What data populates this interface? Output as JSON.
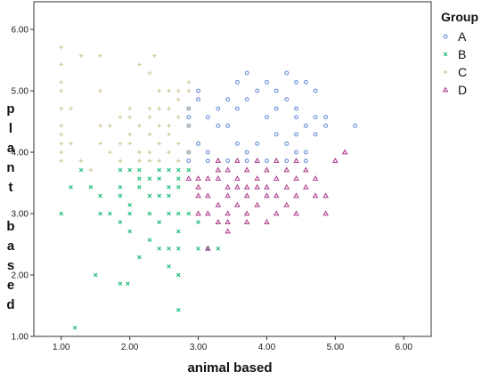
{
  "chart_data": {
    "type": "scatter",
    "xlabel": "animal based",
    "ylabel": "plant based",
    "xlim": [
      0.6,
      6.4
    ],
    "ylim": [
      1.0,
      6.45
    ],
    "xticks": [
      "1.00",
      "2.00",
      "3.00",
      "4.00",
      "5.00",
      "6.00"
    ],
    "yticks": [
      "1.00",
      "2.00",
      "3.00",
      "4.00",
      "5.00",
      "6.00"
    ],
    "grid": false,
    "legend": {
      "title": "Group",
      "position": "right"
    },
    "series": [
      {
        "name": "A",
        "color": "#6b8fd6",
        "marker": "circle",
        "points": [
          [
            4.29,
            5.29
          ],
          [
            4.71,
            5.0
          ],
          [
            5.29,
            4.43
          ],
          [
            4.86,
            4.43
          ],
          [
            4.57,
            4.43
          ],
          [
            4.86,
            4.57
          ],
          [
            4.57,
            5.14
          ],
          [
            4.43,
            5.14
          ],
          [
            3.71,
            5.29
          ],
          [
            3.57,
            5.14
          ],
          [
            4.0,
            5.14
          ],
          [
            3.86,
            5.0
          ],
          [
            4.14,
            5.0
          ],
          [
            3.43,
            4.86
          ],
          [
            3.71,
            4.86
          ],
          [
            4.29,
            4.86
          ],
          [
            4.43,
            4.71
          ],
          [
            4.14,
            4.71
          ],
          [
            3.57,
            4.71
          ],
          [
            3.29,
            4.71
          ],
          [
            3.0,
            4.86
          ],
          [
            4.71,
            4.57
          ],
          [
            4.71,
            4.29
          ],
          [
            4.57,
            4.0
          ],
          [
            4.43,
            4.0
          ],
          [
            4.43,
            4.29
          ],
          [
            3.86,
            4.14
          ],
          [
            3.29,
            4.43
          ],
          [
            3.14,
            4.0
          ],
          [
            3.0,
            4.14
          ],
          [
            2.86,
            4.43
          ],
          [
            2.86,
            4.57
          ],
          [
            2.86,
            4.71
          ],
          [
            2.86,
            4.0
          ],
          [
            2.86,
            3.86
          ],
          [
            3.14,
            3.86
          ],
          [
            3.43,
            3.86
          ],
          [
            3.71,
            3.86
          ],
          [
            4.0,
            3.86
          ],
          [
            4.29,
            3.86
          ],
          [
            4.57,
            3.86
          ],
          [
            3.0,
            5.0
          ],
          [
            3.57,
            4.14
          ],
          [
            4.14,
            4.29
          ],
          [
            4.43,
            4.57
          ],
          [
            3.43,
            4.43
          ],
          [
            4.0,
            4.57
          ],
          [
            3.14,
            4.57
          ],
          [
            3.71,
            4.0
          ],
          [
            4.29,
            4.14
          ]
        ]
      },
      {
        "name": "B",
        "color": "#22c07a",
        "marker": "x",
        "points": [
          [
            1.0,
            3.0
          ],
          [
            1.2,
            1.14
          ],
          [
            1.14,
            3.43
          ],
          [
            1.5,
            2.0
          ],
          [
            1.43,
            3.43
          ],
          [
            1.57,
            3.29
          ],
          [
            1.57,
            3.0
          ],
          [
            1.71,
            3.0
          ],
          [
            1.86,
            3.43
          ],
          [
            1.86,
            3.71
          ],
          [
            2.0,
            3.71
          ],
          [
            2.14,
            3.57
          ],
          [
            1.86,
            3.29
          ],
          [
            1.86,
            2.86
          ],
          [
            1.86,
            1.86
          ],
          [
            1.97,
            1.86
          ],
          [
            2.0,
            2.71
          ],
          [
            2.0,
            3.14
          ],
          [
            2.14,
            2.29
          ],
          [
            2.14,
            3.43
          ],
          [
            2.29,
            2.57
          ],
          [
            2.29,
            3.0
          ],
          [
            2.29,
            3.29
          ],
          [
            2.29,
            3.57
          ],
          [
            2.43,
            3.29
          ],
          [
            2.43,
            3.57
          ],
          [
            2.57,
            3.43
          ],
          [
            2.57,
            3.29
          ],
          [
            2.57,
            3.0
          ],
          [
            2.71,
            3.0
          ],
          [
            2.71,
            2.71
          ],
          [
            2.71,
            3.57
          ],
          [
            2.86,
            3.71
          ],
          [
            2.71,
            3.71
          ],
          [
            2.43,
            2.43
          ],
          [
            2.57,
            2.43
          ],
          [
            2.57,
            2.14
          ],
          [
            2.71,
            2.0
          ],
          [
            2.71,
            1.43
          ],
          [
            2.71,
            2.43
          ],
          [
            3.0,
            2.86
          ],
          [
            3.14,
            2.43
          ],
          [
            3.29,
            2.43
          ],
          [
            2.43,
            3.71
          ],
          [
            2.14,
            3.71
          ],
          [
            2.57,
            3.71
          ],
          [
            1.29,
            3.71
          ],
          [
            2.0,
            3.0
          ],
          [
            2.86,
            3.0
          ],
          [
            2.43,
            2.86
          ],
          [
            2.71,
            3.43
          ],
          [
            3.0,
            2.43
          ]
        ]
      },
      {
        "name": "C",
        "color": "#d4c79a",
        "marker": "plus",
        "points": [
          [
            1.0,
            5.71
          ],
          [
            1.0,
            5.43
          ],
          [
            1.0,
            5.14
          ],
          [
            1.0,
            5.0
          ],
          [
            1.0,
            4.71
          ],
          [
            1.0,
            4.43
          ],
          [
            1.0,
            4.29
          ],
          [
            1.0,
            4.14
          ],
          [
            1.0,
            4.0
          ],
          [
            1.0,
            3.86
          ],
          [
            1.14,
            4.14
          ],
          [
            1.14,
            4.71
          ],
          [
            1.29,
            5.57
          ],
          [
            1.29,
            3.86
          ],
          [
            1.43,
            3.71
          ],
          [
            1.57,
            4.43
          ],
          [
            1.57,
            4.14
          ],
          [
            1.57,
            5.57
          ],
          [
            1.57,
            5.0
          ],
          [
            1.71,
            4.0
          ],
          [
            1.71,
            4.43
          ],
          [
            1.86,
            4.14
          ],
          [
            1.86,
            4.57
          ],
          [
            1.86,
            3.86
          ],
          [
            2.0,
            4.29
          ],
          [
            2.0,
            4.14
          ],
          [
            2.0,
            4.57
          ],
          [
            2.0,
            4.71
          ],
          [
            2.14,
            5.43
          ],
          [
            2.14,
            4.43
          ],
          [
            2.14,
            4.0
          ],
          [
            2.14,
            3.86
          ],
          [
            2.29,
            4.57
          ],
          [
            2.29,
            4.71
          ],
          [
            2.29,
            4.29
          ],
          [
            2.29,
            4.0
          ],
          [
            2.29,
            5.29
          ],
          [
            2.29,
            3.86
          ],
          [
            2.43,
            4.71
          ],
          [
            2.43,
            4.43
          ],
          [
            2.43,
            4.14
          ],
          [
            2.43,
            3.86
          ],
          [
            2.57,
            4.71
          ],
          [
            2.57,
            4.43
          ],
          [
            2.57,
            4.0
          ],
          [
            2.57,
            4.29
          ],
          [
            2.71,
            4.86
          ],
          [
            2.71,
            4.57
          ],
          [
            2.71,
            4.14
          ],
          [
            2.71,
            3.86
          ],
          [
            2.86,
            5.14
          ],
          [
            2.86,
            4.71
          ],
          [
            2.86,
            4.43
          ],
          [
            2.86,
            4.0
          ],
          [
            2.43,
            5.0
          ],
          [
            2.57,
            5.0
          ],
          [
            2.71,
            5.0
          ],
          [
            2.86,
            5.0
          ],
          [
            2.36,
            5.57
          ]
        ]
      },
      {
        "name": "D",
        "color": "#b0458f",
        "marker": "triangle",
        "points": [
          [
            2.86,
            3.57
          ],
          [
            3.0,
            3.57
          ],
          [
            3.0,
            3.43
          ],
          [
            3.0,
            3.29
          ],
          [
            3.0,
            3.0
          ],
          [
            3.14,
            3.57
          ],
          [
            3.14,
            3.29
          ],
          [
            3.29,
            3.86
          ],
          [
            3.29,
            3.71
          ],
          [
            3.29,
            3.57
          ],
          [
            3.29,
            3.14
          ],
          [
            3.29,
            2.86
          ],
          [
            3.43,
            3.71
          ],
          [
            3.43,
            3.43
          ],
          [
            3.43,
            3.29
          ],
          [
            3.43,
            3.0
          ],
          [
            3.43,
            2.86
          ],
          [
            3.57,
            3.86
          ],
          [
            3.57,
            3.57
          ],
          [
            3.57,
            3.43
          ],
          [
            3.57,
            3.14
          ],
          [
            3.71,
            3.71
          ],
          [
            3.71,
            3.43
          ],
          [
            3.71,
            3.29
          ],
          [
            3.71,
            3.0
          ],
          [
            3.71,
            2.86
          ],
          [
            3.86,
            3.86
          ],
          [
            3.86,
            3.57
          ],
          [
            3.86,
            3.43
          ],
          [
            3.86,
            3.14
          ],
          [
            4.0,
            3.71
          ],
          [
            4.0,
            3.43
          ],
          [
            4.0,
            3.29
          ],
          [
            4.0,
            2.86
          ],
          [
            4.14,
            3.86
          ],
          [
            4.14,
            3.57
          ],
          [
            4.14,
            3.29
          ],
          [
            4.14,
            3.0
          ],
          [
            4.29,
            3.71
          ],
          [
            4.29,
            3.43
          ],
          [
            4.29,
            3.14
          ],
          [
            4.43,
            3.86
          ],
          [
            4.43,
            3.57
          ],
          [
            4.43,
            3.29
          ],
          [
            4.43,
            3.0
          ],
          [
            4.57,
            3.71
          ],
          [
            4.57,
            3.43
          ],
          [
            4.71,
            3.29
          ],
          [
            4.71,
            3.57
          ],
          [
            4.86,
            3.0
          ],
          [
            4.86,
            3.29
          ],
          [
            5.0,
            3.86
          ],
          [
            5.14,
            4.0
          ],
          [
            3.43,
            2.71
          ],
          [
            3.14,
            2.43
          ],
          [
            3.14,
            3.0
          ]
        ]
      }
    ]
  }
}
